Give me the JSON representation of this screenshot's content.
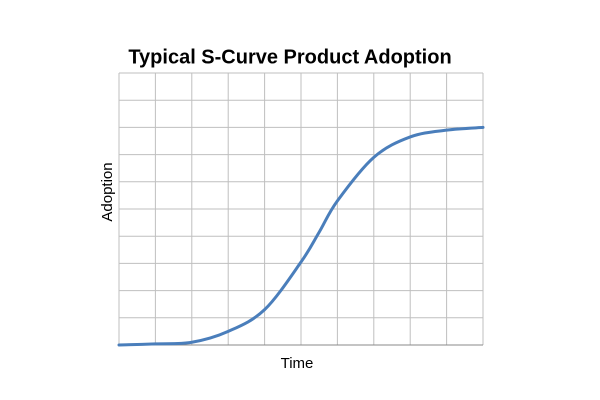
{
  "chart_data": {
    "type": "line",
    "title": "Typical S-Curve Product Adoption",
    "x_label": "Time",
    "y_label": "Adoption",
    "x": [
      0,
      1,
      2,
      3,
      4,
      5,
      5.5,
      6,
      7,
      8,
      9,
      10
    ],
    "series": [
      {
        "color": "#4a7ebb",
        "values": [
          0,
          0.04,
          0.1,
          0.5,
          1.3,
          3.05,
          4.15,
          5.3,
          6.9,
          7.65,
          7.9,
          8.0
        ]
      }
    ],
    "xlim": [
      0,
      10
    ],
    "ylim": [
      0,
      10
    ],
    "xticks": [
      0,
      1,
      2,
      3,
      4,
      5,
      6,
      7,
      8,
      9,
      10
    ],
    "yticks": [
      0,
      1,
      2,
      3,
      4,
      5,
      6,
      7,
      8,
      9,
      10
    ],
    "grid": true
  }
}
